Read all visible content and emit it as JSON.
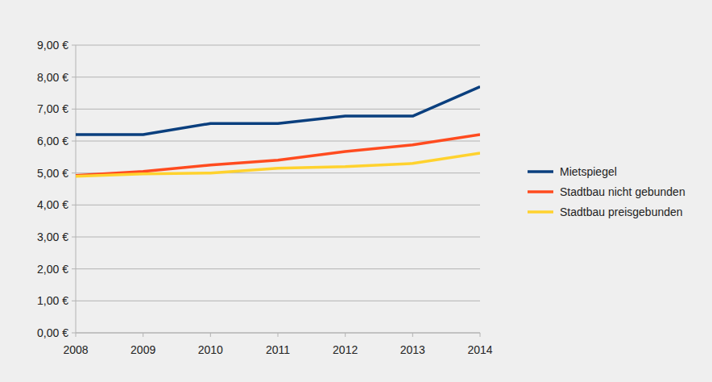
{
  "chart_data": {
    "type": "line",
    "x": [
      2008,
      2009,
      2010,
      2011,
      2012,
      2013,
      2014
    ],
    "xlim": [
      2008,
      2014
    ],
    "xticks": [
      2008,
      2009,
      2010,
      2011,
      2012,
      2013,
      2014
    ],
    "ylim": [
      0,
      9
    ],
    "yticks": [
      {
        "value": 0,
        "label": "0,00 €"
      },
      {
        "value": 1,
        "label": "1,00 €"
      },
      {
        "value": 2,
        "label": "2,00 €"
      },
      {
        "value": 3,
        "label": "3,00 €"
      },
      {
        "value": 4,
        "label": "4,00 €"
      },
      {
        "value": 5,
        "label": "5,00 €"
      },
      {
        "value": 6,
        "label": "6,00 €"
      },
      {
        "value": 7,
        "label": "7,00 €"
      },
      {
        "value": 8,
        "label": "8,00 €"
      },
      {
        "value": 9,
        "label": "9,00 €"
      }
    ],
    "grid": true,
    "legend": "right",
    "series": [
      {
        "name": "Mietspiegel",
        "color": "#0a3f7e",
        "values": [
          6.2,
          6.2,
          6.55,
          6.55,
          6.78,
          6.78,
          7.7
        ]
      },
      {
        "name": "Stadtbau nicht gebunden",
        "color": "#ff4b1f",
        "values": [
          4.92,
          5.05,
          5.25,
          5.4,
          5.67,
          5.88,
          6.2
        ]
      },
      {
        "name": "Stadtbau preisgebunden",
        "color": "#ffd22e",
        "values": [
          4.9,
          4.97,
          5.0,
          5.15,
          5.2,
          5.3,
          5.62
        ]
      }
    ]
  }
}
